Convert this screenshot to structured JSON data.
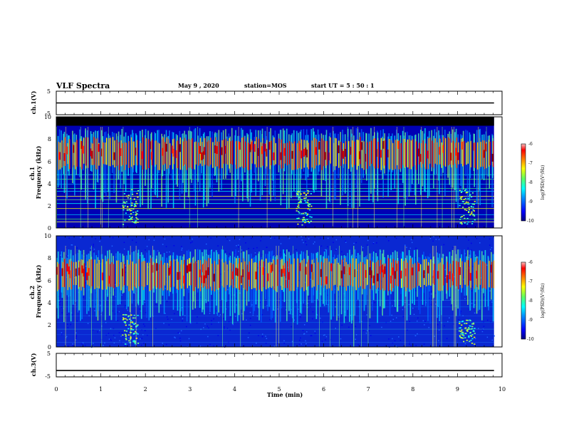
{
  "header": {
    "title": "VLF Spectra",
    "date": "May 9  , 2020",
    "station": "station=MOS",
    "start": "start  UT  =   5  : 50 : 1"
  },
  "colors": {
    "colormap": [
      "#00007f",
      "#0000ff",
      "#007fff",
      "#00ffff",
      "#7fff7f",
      "#ffff00",
      "#ff7f00",
      "#ff0000",
      "#7f0000"
    ],
    "saturated_band": "#000000",
    "trace": "#000000"
  },
  "chart_data": [
    {
      "type": "line",
      "id": "ch1_voltage",
      "ylabel": "ch.1(V)",
      "ylim": [
        -5,
        5
      ],
      "yticks": [
        "5",
        "-5"
      ],
      "series": [
        {
          "x": [
            0,
            9.82
          ],
          "y": [
            0,
            0
          ]
        }
      ]
    },
    {
      "type": "heatmap",
      "id": "ch1_spectrogram",
      "ylabel": "ch.1\nFrequency (kHz)",
      "ylim": [
        0,
        10
      ],
      "yticks": [
        "0",
        "2",
        "4",
        "6",
        "8",
        "10"
      ],
      "xlim": [
        0,
        10
      ],
      "data_end_min": 9.82,
      "saturated_above_khz": 9.2,
      "emission_band_khz": [
        5.2,
        8.2
      ],
      "emission_peak_khz": 6.9,
      "hiss_blobs": [
        {
          "center_min": 1.65,
          "khz": [
            0.3,
            3.5
          ]
        },
        {
          "center_min": 5.55,
          "khz": [
            0.3,
            3.5
          ]
        },
        {
          "center_min": 9.2,
          "khz": [
            0.3,
            3.5
          ]
        }
      ],
      "colorbar": {
        "label": "log(PSD)(V²/Hz)",
        "range": [
          -10,
          -6
        ],
        "ticks": [
          "-6",
          "-7",
          "-8",
          "-9",
          "-10"
        ]
      }
    },
    {
      "type": "heatmap",
      "id": "ch2_spectrogram",
      "ylabel": "ch.2\nFrequency (kHz)",
      "ylim": [
        0,
        10
      ],
      "yticks": [
        "0",
        "2",
        "4",
        "6",
        "8",
        "10"
      ],
      "xlim": [
        0,
        10
      ],
      "data_end_min": 9.82,
      "emission_band_khz": [
        5.0,
        8.0
      ],
      "emission_peak_khz": 6.6,
      "hiss_blobs": [
        {
          "center_min": 1.65,
          "khz": [
            0.3,
            3.0
          ]
        },
        {
          "center_min": 9.2,
          "khz": [
            0.3,
            2.5
          ]
        }
      ],
      "colorbar": {
        "label": "log(PSD)(V²/Hz)",
        "range": [
          -10,
          -6
        ],
        "ticks": [
          "-6",
          "-7",
          "-8",
          "-9",
          "-10"
        ]
      }
    },
    {
      "type": "line",
      "id": "ch3_voltage",
      "ylabel": "ch.3(V)",
      "ylim": [
        -5,
        5
      ],
      "yticks": [
        "5",
        "-5"
      ],
      "series": [
        {
          "x": [
            0,
            9.82
          ],
          "y": [
            -2.3,
            -2.3
          ]
        }
      ]
    }
  ],
  "xaxis": {
    "label": "Time  (min)",
    "ticks": [
      "0",
      "1",
      "2",
      "3",
      "4",
      "5",
      "6",
      "7",
      "8",
      "9",
      "10"
    ]
  }
}
